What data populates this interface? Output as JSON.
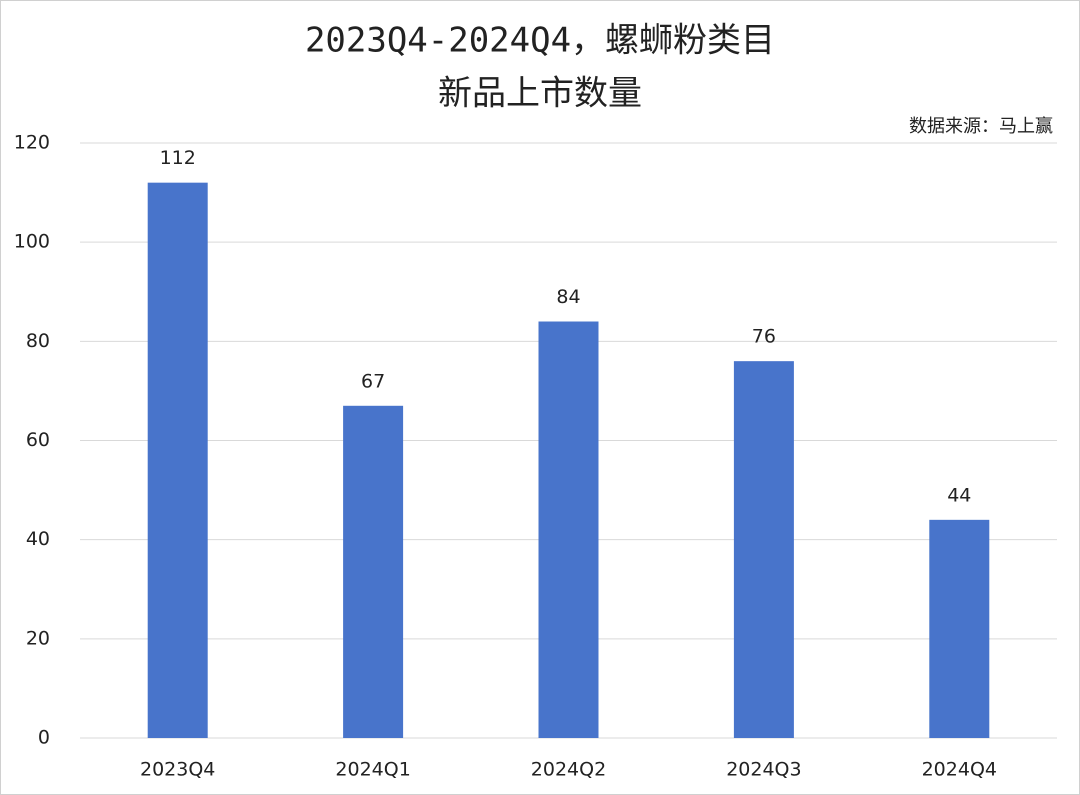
{
  "chart_data": {
    "type": "bar",
    "title": [
      "2023Q4-2024Q4，螺蛳粉类目",
      "新品上市数量"
    ],
    "source": "数据来源：马上赢",
    "categories": [
      "2023Q4",
      "2024Q1",
      "2024Q2",
      "2024Q3",
      "2024Q4"
    ],
    "values": [
      112,
      67,
      84,
      76,
      44
    ],
    "color": "#4874cb",
    "ylim": [
      0,
      120
    ],
    "yticks": [
      0,
      20,
      40,
      60,
      80,
      100,
      120
    ],
    "grid": true
  }
}
